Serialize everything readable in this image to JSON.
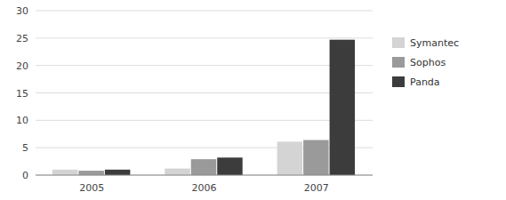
{
  "chart_data": {
    "type": "bar",
    "categories": [
      "2005",
      "2006",
      "2007"
    ],
    "series": [
      {
        "name": "Symantec",
        "color": "#d4d4d4",
        "values": [
          1.0,
          1.2,
          6.1
        ]
      },
      {
        "name": "Sophos",
        "color": "#9a9a9a",
        "values": [
          0.8,
          2.9,
          6.4
        ]
      },
      {
        "name": "Panda",
        "color": "#3c3c3c",
        "values": [
          1.0,
          3.2,
          24.7
        ]
      }
    ],
    "ylim": [
      0,
      30
    ],
    "yticks": [
      0,
      5,
      10,
      15,
      20,
      25,
      30
    ],
    "grid": true,
    "legend": "right"
  }
}
